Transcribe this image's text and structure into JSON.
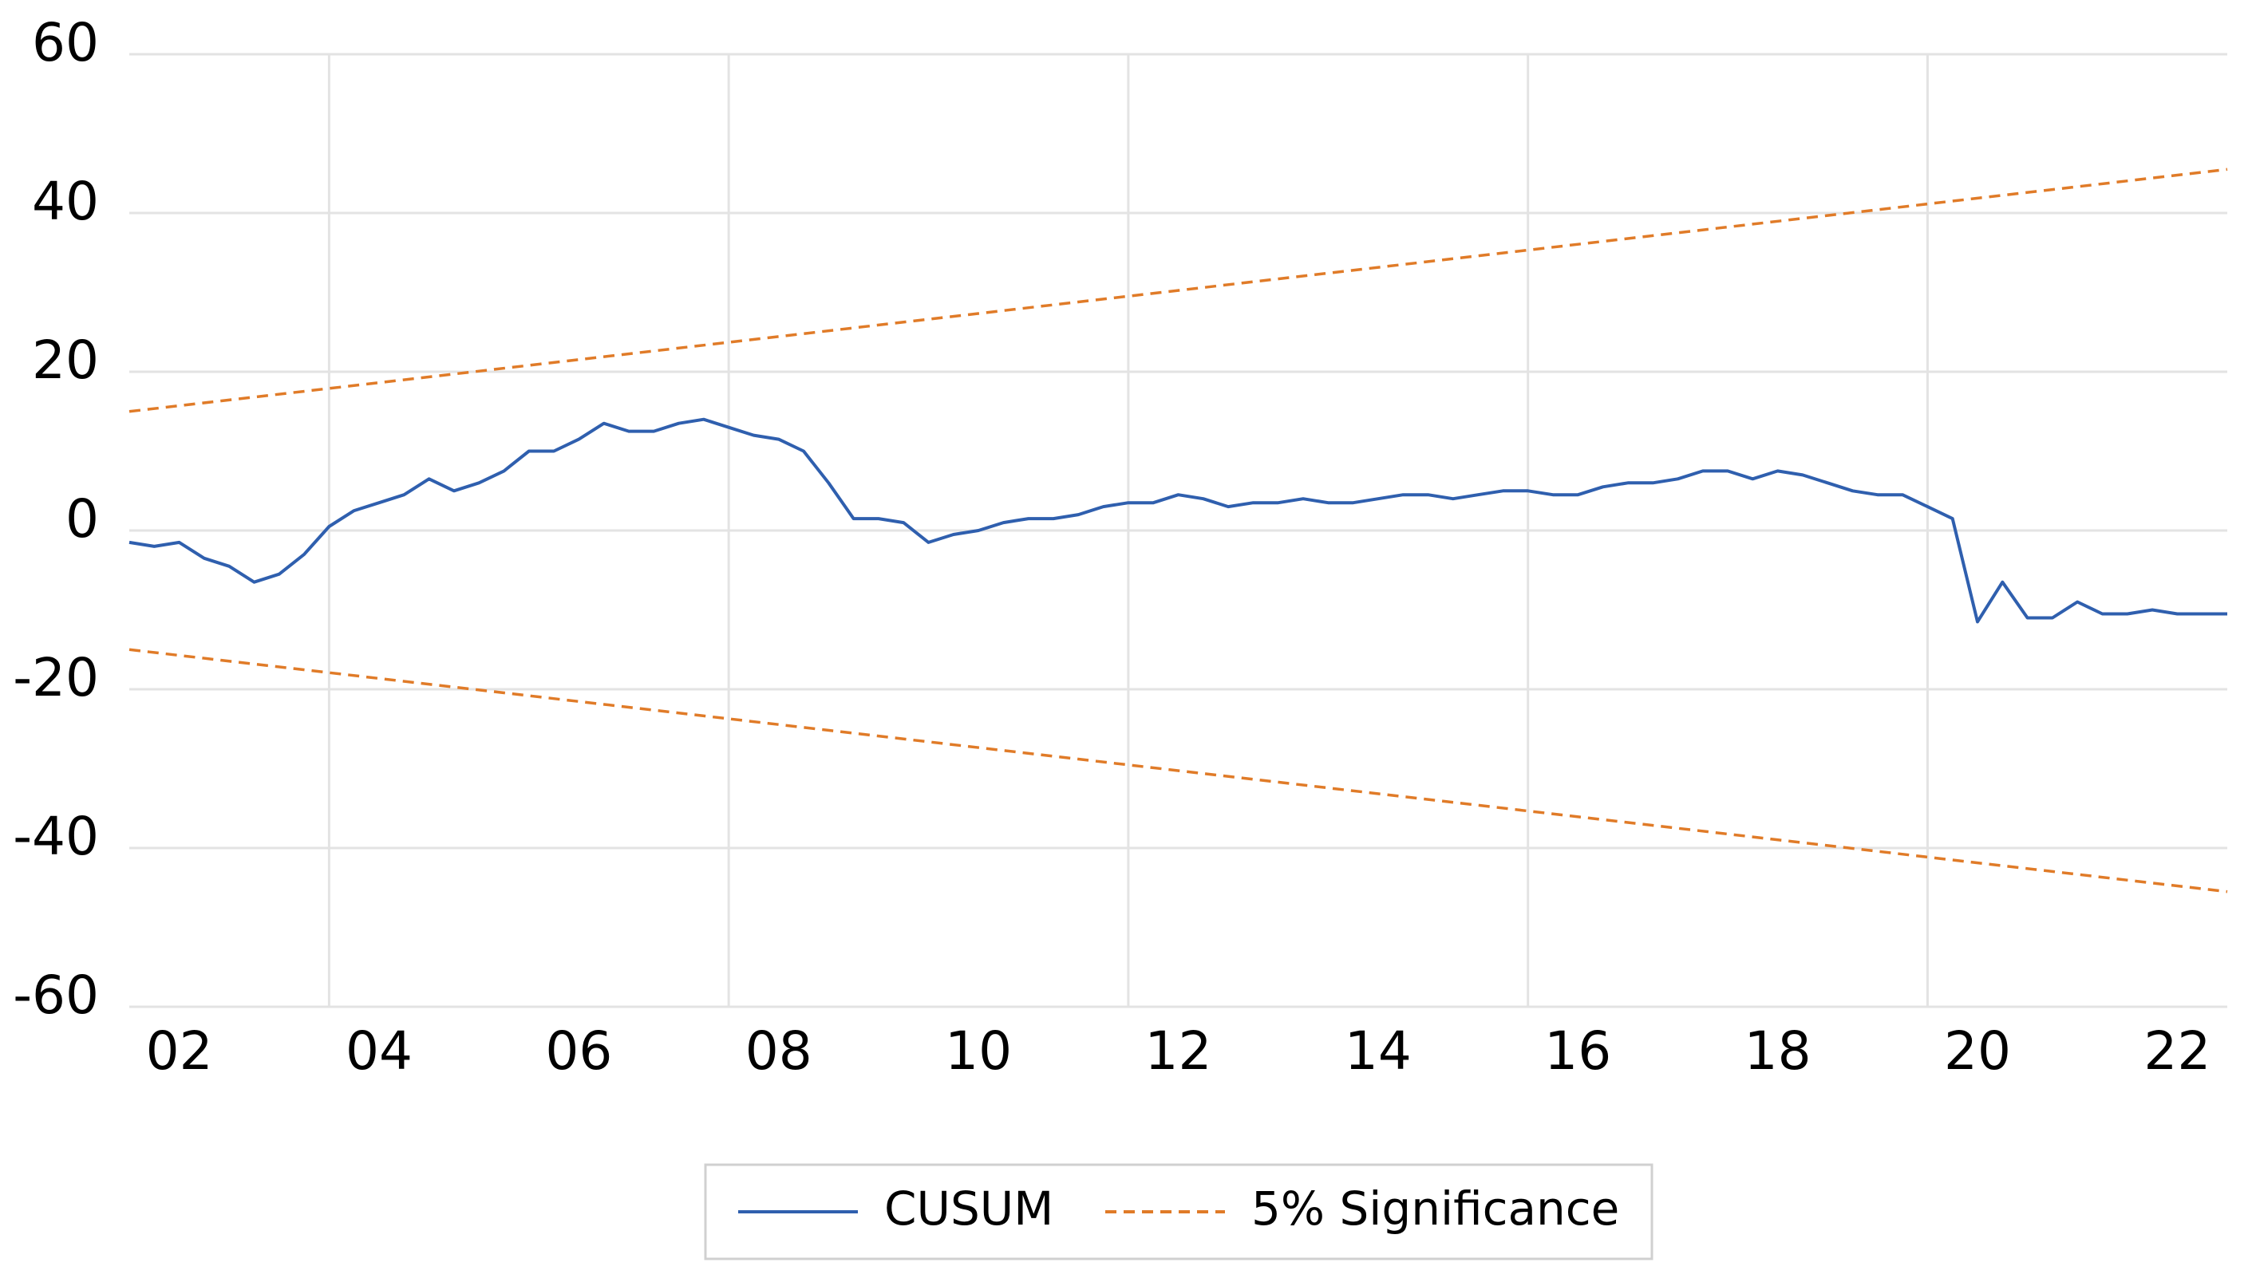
{
  "chart_data": {
    "type": "line",
    "xlim": [
      2002,
      2023
    ],
    "ylim": [
      -60,
      60
    ],
    "yticks": [
      60,
      40,
      20,
      0,
      -20,
      -40,
      -60
    ],
    "xticks": [
      {
        "value": 2002.5,
        "label": "02"
      },
      {
        "value": 2004.5,
        "label": "04"
      },
      {
        "value": 2006.5,
        "label": "06"
      },
      {
        "value": 2008.5,
        "label": "08"
      },
      {
        "value": 2010.5,
        "label": "10"
      },
      {
        "value": 2012.5,
        "label": "12"
      },
      {
        "value": 2014.5,
        "label": "14"
      },
      {
        "value": 2016.5,
        "label": "16"
      },
      {
        "value": 2018.5,
        "label": "18"
      },
      {
        "value": 2020.5,
        "label": "20"
      },
      {
        "value": 2022.5,
        "label": "22"
      }
    ],
    "xgrid": [
      2004,
      2008,
      2012,
      2016,
      2020
    ],
    "grid": true,
    "legend": "bottom",
    "series": [
      {
        "name": "CUSUM",
        "color": "#2f5fae",
        "x": [
          2002,
          2002.25,
          2002.5,
          2002.75,
          2003,
          2003.25,
          2003.5,
          2003.75,
          2004,
          2004.25,
          2004.5,
          2004.75,
          2005,
          2005.25,
          2005.5,
          2005.75,
          2006,
          2006.25,
          2006.5,
          2006.75,
          2007,
          2007.25,
          2007.5,
          2007.75,
          2008,
          2008.25,
          2008.5,
          2008.75,
          2009,
          2009.25,
          2009.5,
          2009.75,
          2010,
          2010.25,
          2010.5,
          2010.75,
          2011,
          2011.25,
          2011.5,
          2011.75,
          2012,
          2012.25,
          2012.5,
          2012.75,
          2013,
          2013.25,
          2013.5,
          2013.75,
          2014,
          2014.25,
          2014.5,
          2014.75,
          2015,
          2015.25,
          2015.5,
          2015.75,
          2016,
          2016.25,
          2016.5,
          2016.75,
          2017,
          2017.25,
          2017.5,
          2017.75,
          2018,
          2018.25,
          2018.5,
          2018.75,
          2019,
          2019.25,
          2019.5,
          2019.75,
          2020,
          2020.25,
          2020.5,
          2020.75,
          2021,
          2021.25,
          2021.5,
          2021.75,
          2022,
          2022.25,
          2022.5,
          2022.75,
          2023
        ],
        "values": [
          -1.5,
          -2,
          -1.5,
          -3.5,
          -4.5,
          -6.5,
          -5.5,
          -3,
          0.5,
          2.5,
          3.5,
          4.5,
          6.5,
          5,
          6,
          7.5,
          10,
          10,
          11.5,
          13.5,
          12.5,
          12.5,
          13.5,
          14,
          13,
          12,
          11.5,
          10,
          6,
          1.5,
          1.5,
          1,
          -1.5,
          -0.5,
          0,
          1,
          1.5,
          1.5,
          2,
          3,
          3.5,
          3.5,
          4.5,
          4,
          3,
          3.5,
          3.5,
          4,
          3.5,
          3.5,
          4,
          4.5,
          4.5,
          4,
          4.5,
          5,
          5,
          4.5,
          4.5,
          5.5,
          6,
          6,
          6.5,
          7.5,
          7.5,
          6.5,
          7.5,
          7,
          6,
          5,
          4.5,
          4.5,
          3,
          1.5,
          -11.5,
          -6.5,
          -11,
          -11,
          -9,
          -10.5,
          -10.5,
          -10,
          -10.5,
          -10.5,
          -10.5
        ]
      },
      {
        "name": "5% Significance",
        "color": "#e07b28",
        "dashed": true,
        "x": [
          2002,
          2023
        ],
        "upper": [
          15,
          45.5
        ],
        "lower": [
          -15,
          -45.5
        ]
      }
    ]
  }
}
